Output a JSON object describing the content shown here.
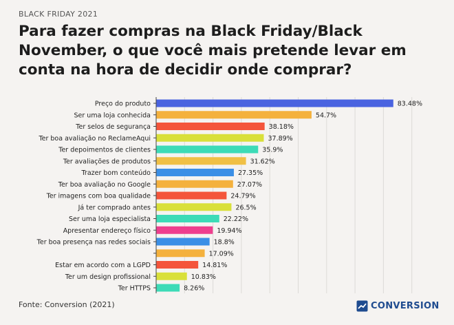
{
  "header": {
    "kicker": "BLACK FRIDAY 2021",
    "title": "Para fazer compras na Black Friday/Black November, o que você mais pretende levar em conta na hora de decidir onde comprar?"
  },
  "footer": {
    "source": "Fonte: Conversion (2021)",
    "brand": "CONVERSION",
    "brand_icon": "chart-trend-icon",
    "brand_color": "#1f4b8f"
  },
  "chart_data": {
    "type": "bar",
    "orientation": "horizontal",
    "title": "",
    "xlabel": "",
    "ylabel": "",
    "xlim": [
      0,
      100
    ],
    "grid": true,
    "categories": [
      "Preço do produto",
      "Ser uma loja conhecida",
      "Ter selos de segurança",
      "Ter boa avaliação no ReclameAqui",
      "Ter depoimentos de clientes",
      "Ter avaliações de produtos",
      "Trazer bom conteúdo",
      "Ter boa avaliação no Google",
      "Ter imagens com boa qualidade",
      "Já ter comprado antes",
      "Ser uma loja especialista",
      "Apresentar endereço físico",
      "Ter boa presença nas redes sociais",
      "",
      "Estar em acordo com a LGPD",
      "Ter um design profissional",
      "Ter HTTPS"
    ],
    "values": [
      83.48,
      54.7,
      38.18,
      37.89,
      35.9,
      31.62,
      27.35,
      27.07,
      24.79,
      26.5,
      22.22,
      19.94,
      18.8,
      17.09,
      14.81,
      10.83,
      8.26
    ],
    "value_labels": [
      "83.48%",
      "54.7%",
      "38.18%",
      "37.89%",
      "35.9%",
      "31.62%",
      "27.35%",
      "27.07%",
      "24.79%",
      "26.5%",
      "22.22%",
      "19.94%",
      "18.8%",
      "17.09%",
      "14.81%",
      "10.83%",
      "8.26%"
    ],
    "colors": [
      "#4a63e0",
      "#f4b13d",
      "#f4553b",
      "#d9e03a",
      "#3ddbb7",
      "#f0c045",
      "#3b8fe6",
      "#f4b13d",
      "#f4553b",
      "#d9e03a",
      "#3ddbb7",
      "#ee3e8e",
      "#3b8fe6",
      "#f4b13d",
      "#f4553b",
      "#d9e03a",
      "#3ddbb7"
    ]
  }
}
